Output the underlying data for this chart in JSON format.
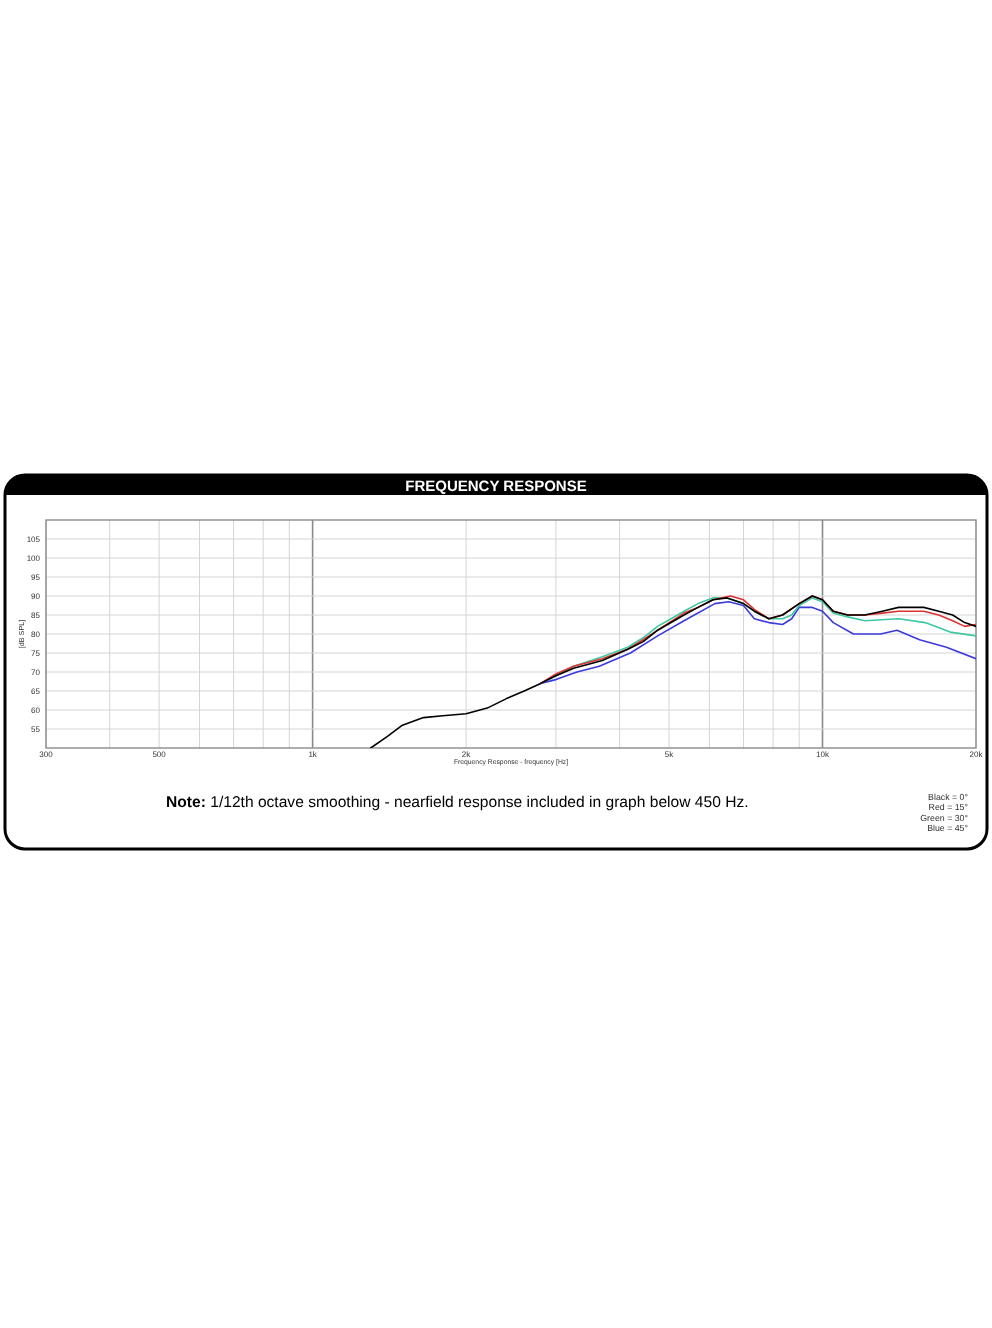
{
  "chart_data": {
    "type": "line",
    "title": "FREQUENCY RESPONSE",
    "xlabel": "Frequency Response - frequency [Hz]",
    "ylabel": "[dB SPL]",
    "annotations": [
      "Note: 1/12th octave smoothing - nearfield response included in graph below 450 Hz.",
      "Black = 0°",
      "Red = 15°",
      "Green = 30°",
      "Blue = 45°"
    ],
    "log": "x",
    "grid": true,
    "xlim": [
      300,
      20000
    ],
    "ylim": [
      50,
      110
    ],
    "xticks": [
      300,
      {
        "value": 400,
        "label": null
      },
      500,
      {
        "value": 600,
        "label": null
      },
      {
        "value": 700,
        "label": null
      },
      {
        "value": 800,
        "label": null
      },
      {
        "value": 900,
        "label": null
      },
      {
        "value": 1000,
        "label": "1k"
      },
      {
        "value": 2000,
        "label": "2k"
      },
      {
        "value": 3000,
        "label": null
      },
      {
        "value": 4000,
        "label": null
      },
      {
        "value": 5000,
        "label": "5k"
      },
      {
        "value": 6000,
        "label": null
      },
      {
        "value": 7000,
        "label": null
      },
      {
        "value": 8000,
        "label": null
      },
      {
        "value": 9000,
        "label": null
      },
      {
        "value": 10000,
        "label": "10k"
      },
      {
        "value": 20000,
        "label": "20k"
      }
    ],
    "yticks": [
      55,
      60,
      65,
      70,
      75,
      80,
      85,
      90,
      95,
      100,
      105
    ],
    "series": [
      {
        "color": "#000000",
        "x": [
          1300,
          1400,
          1500,
          1650,
          1800,
          2000,
          2200,
          2400,
          2600,
          2800,
          3000,
          3250,
          3700,
          4150,
          4450,
          4750,
          5350,
          5700,
          6100,
          6500,
          7000,
          7350,
          7850,
          8350,
          9000,
          9550,
          10000,
          10500,
          11200,
          12100,
          13100,
          14100,
          15800,
          16900,
          18000,
          19000,
          20000
        ],
        "values": [
          50,
          53,
          56,
          58,
          58.5,
          59,
          60.5,
          63,
          65,
          67,
          69,
          71,
          73,
          76,
          78,
          81,
          85,
          87,
          89,
          89.5,
          88,
          86,
          84,
          85,
          88,
          90,
          89,
          86,
          85,
          85,
          86,
          87,
          87,
          86,
          85,
          83,
          82
        ]
      },
      {
        "color": "#e03131",
        "x": [
          2800,
          3000,
          3250,
          3700,
          4150,
          4450,
          4750,
          5350,
          5700,
          6100,
          6600,
          7000,
          7350,
          7850,
          8350,
          9000,
          9550,
          10000,
          10500,
          11200,
          12100,
          13100,
          14100,
          15800,
          16900,
          18000,
          19000,
          20000
        ],
        "values": [
          67,
          69.5,
          71.5,
          73.5,
          76,
          78.5,
          81,
          85.5,
          87,
          89,
          90,
          89,
          86.5,
          84,
          85,
          88,
          90,
          89,
          86,
          85,
          85,
          85.5,
          86,
          86,
          85,
          83.5,
          82,
          82.5
        ]
      },
      {
        "color": "#3cc8a0",
        "x": [
          2800,
          3000,
          3250,
          3700,
          4150,
          4450,
          4750,
          5350,
          5700,
          6100,
          6500,
          7000,
          7350,
          7850,
          8350,
          8700,
          9000,
          9550,
          10000,
          10500,
          11200,
          12100,
          14100,
          15900,
          17800,
          20000
        ],
        "values": [
          67,
          69,
          71.5,
          74,
          76.5,
          79,
          82,
          86,
          88,
          89.5,
          89.5,
          88,
          86,
          84,
          84,
          85,
          87.5,
          89.5,
          88.5,
          85.5,
          84.5,
          83.5,
          84,
          83,
          80.5,
          79.5
        ]
      },
      {
        "color": "#3b3bdc",
        "x": [
          2800,
          3000,
          3300,
          3650,
          4200,
          4750,
          5350,
          6150,
          6550,
          7000,
          7350,
          7850,
          8350,
          8700,
          9000,
          9550,
          10000,
          10500,
          11500,
          13000,
          14000,
          15500,
          17500,
          20000
        ],
        "values": [
          67,
          68,
          70,
          71.5,
          75,
          79.5,
          83.5,
          88,
          88.5,
          87.5,
          84,
          83,
          82.5,
          84,
          87,
          87,
          86,
          83,
          80,
          80,
          81,
          78.5,
          76.5,
          73.5
        ]
      }
    ]
  }
}
